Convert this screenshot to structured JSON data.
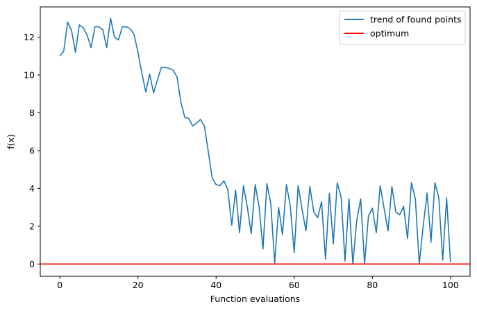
{
  "chart_data": {
    "type": "line",
    "title": "",
    "xlabel": "Function evaluations",
    "ylabel": "f(x)",
    "xlim": [
      -5,
      105
    ],
    "ylim": [
      -0.65,
      13.6
    ],
    "x_ticks": [
      0,
      20,
      40,
      60,
      80,
      100
    ],
    "y_ticks": [
      0,
      2,
      4,
      6,
      8,
      10,
      12
    ],
    "grid": false,
    "legend_position": "top-right",
    "series": [
      {
        "name": "trend of found points",
        "color": "#1f77b4",
        "x": [
          0,
          1,
          2,
          3,
          4,
          5,
          6,
          7,
          8,
          9,
          10,
          11,
          12,
          13,
          14,
          15,
          16,
          17,
          18,
          19,
          20,
          21,
          22,
          23,
          24,
          25,
          26,
          27,
          28,
          29,
          30,
          31,
          32,
          33,
          34,
          35,
          36,
          37,
          38,
          39,
          40,
          41,
          42,
          43,
          44,
          45,
          46,
          47,
          48,
          49,
          50,
          51,
          52,
          53,
          54,
          55,
          56,
          57,
          58,
          59,
          60,
          61,
          62,
          63,
          64,
          65,
          66,
          67,
          68,
          69,
          70,
          71,
          72,
          73,
          74,
          75,
          76,
          77,
          78,
          79,
          80,
          81,
          82,
          83,
          84,
          85,
          86,
          87,
          88,
          89,
          90,
          91,
          92,
          93,
          94,
          95,
          96,
          97,
          98,
          99,
          100
        ],
        "y": [
          11.0,
          11.25,
          12.8,
          12.35,
          11.2,
          12.65,
          12.5,
          12.1,
          11.45,
          12.55,
          12.55,
          12.4,
          11.45,
          13.0,
          12.0,
          11.85,
          12.55,
          12.55,
          12.45,
          12.15,
          11.2,
          10.1,
          9.1,
          10.05,
          9.05,
          9.75,
          10.4,
          10.4,
          10.35,
          10.25,
          9.9,
          8.55,
          7.75,
          7.7,
          7.3,
          7.45,
          7.65,
          7.3,
          5.95,
          4.55,
          4.2,
          4.15,
          4.4,
          3.95,
          2.05,
          3.9,
          1.65,
          4.15,
          3.0,
          1.6,
          4.2,
          3.05,
          0.8,
          4.25,
          3.2,
          0.05,
          3.0,
          1.55,
          4.2,
          3.05,
          0.6,
          4.15,
          2.9,
          1.75,
          4.1,
          2.75,
          2.45,
          3.3,
          0.25,
          3.75,
          1.05,
          4.3,
          3.55,
          0.15,
          3.45,
          0.0,
          2.3,
          3.45,
          0.0,
          2.55,
          2.95,
          1.65,
          4.15,
          2.95,
          1.75,
          4.1,
          2.75,
          2.6,
          3.05,
          1.35,
          4.3,
          3.45,
          0.0,
          2.0,
          3.75,
          1.15,
          4.3,
          3.5,
          0.2,
          3.5,
          0.1
        ]
      },
      {
        "name": "optimum",
        "color": "#ff0000",
        "constant": 0
      }
    ]
  }
}
